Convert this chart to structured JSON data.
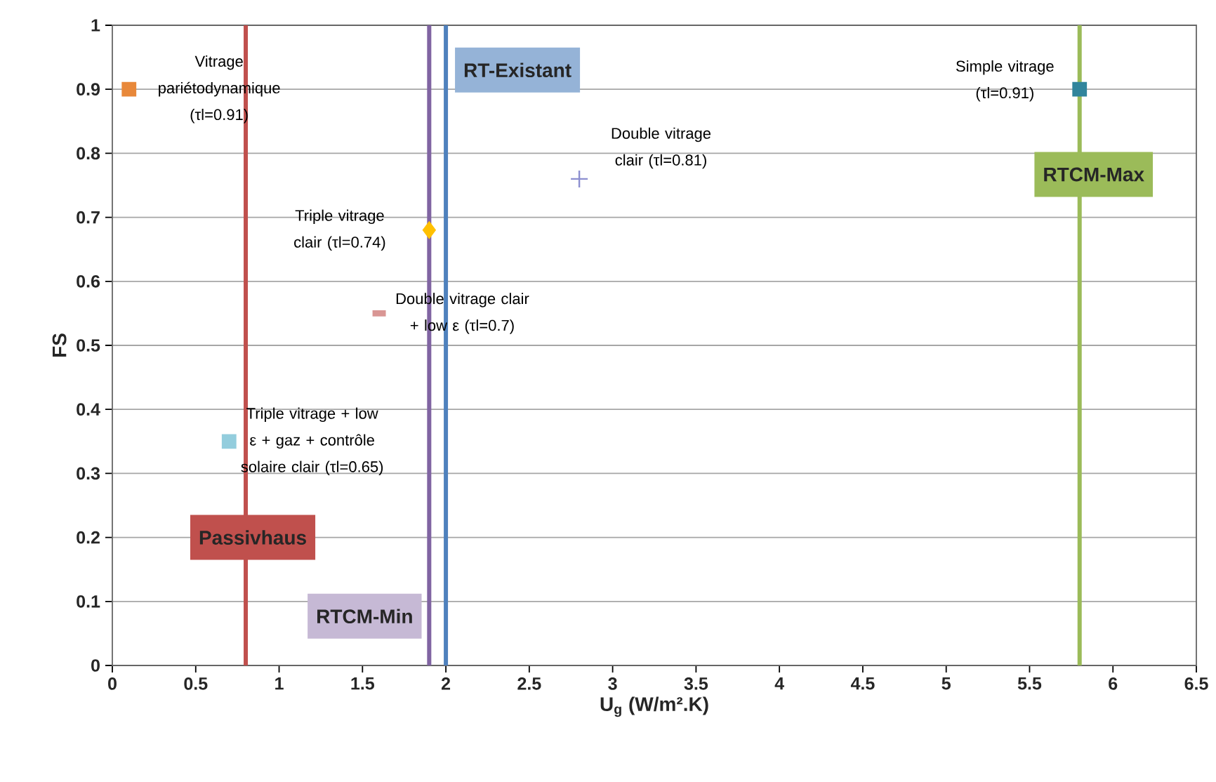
{
  "chart_data": {
    "type": "scatter",
    "xlabel": "U$_{g}$ (W/m².K)",
    "ylabel": "FS",
    "xlim": [
      0,
      6.5
    ],
    "xticks": [
      0,
      0.5,
      1,
      1.5,
      2,
      2.5,
      3,
      3.5,
      4,
      4.5,
      5,
      5.5,
      6,
      6.5
    ],
    "ylim": [
      0,
      1
    ],
    "yticks": [
      0,
      0.1,
      0.2,
      0.3,
      0.4,
      0.5,
      0.6,
      0.7,
      0.8,
      0.9,
      1
    ],
    "grid": "y",
    "series": [
      {
        "name": "Vitrage pariétodynamique (τl=0.91)",
        "color": "#e8883a",
        "marker": "square",
        "x": [
          0.1
        ],
        "values": [
          0.9
        ]
      },
      {
        "name": "Simple vitrage (τl=0.91)",
        "color": "#31859c",
        "marker": "square",
        "x": [
          5.8
        ],
        "values": [
          0.9
        ]
      },
      {
        "name": "Double vitrage clair (τl=0.81)",
        "color": "#8c8fd0",
        "marker": "cross",
        "x": [
          2.8
        ],
        "values": [
          0.76
        ]
      },
      {
        "name": "Triple  vitrage clair (τl=0.74)",
        "color": "#ffc000",
        "marker": "diamond",
        "x": [
          1.9
        ],
        "values": [
          0.68
        ]
      },
      {
        "name": "Double vitrage clair + low ε (τl=0.7)",
        "color": "#d99694",
        "marker": "square",
        "x": [
          1.6
        ],
        "values": [
          0.55
        ]
      },
      {
        "name": "Triple  vitrage + low ε + gaz + contrôle solaire  clair (τl=0.65)",
        "color": "#93cddd",
        "marker": "square",
        "x": [
          0.7
        ],
        "values": [
          0.35
        ]
      }
    ],
    "ref_lines": [
      {
        "axis": "x",
        "value": 0.8,
        "label": "Passivhaus",
        "color": "#c0504d"
      },
      {
        "axis": "x",
        "value": 1.9,
        "label": "RTCM-Min",
        "color": "#8064a2"
      },
      {
        "axis": "x",
        "value": 2.0,
        "label": "RT-Existant",
        "color": "#4f81bd"
      },
      {
        "axis": "x",
        "value": 5.8,
        "label": "RTCM-Max",
        "color": "#9bbb59"
      }
    ]
  }
}
